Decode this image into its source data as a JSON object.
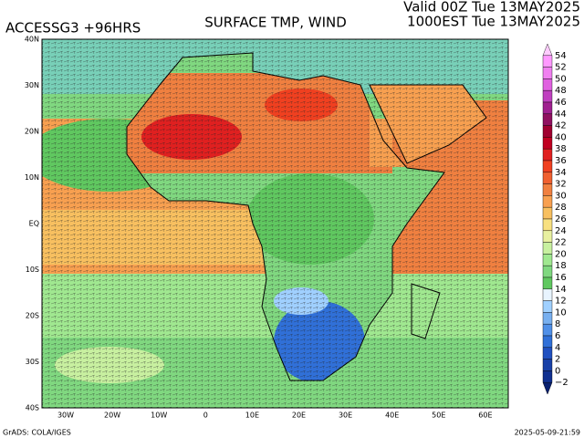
{
  "header": {
    "model": "ACCESSG3 +96HRS",
    "title": "SURFACE TMP, WIND",
    "valid": "Valid 00Z Tue 13MAY2025",
    "local": "1000EST Tue 13MAY2025"
  },
  "map": {
    "lat_labels": [
      "40N",
      "30N",
      "20N",
      "10N",
      "EQ",
      "10S",
      "20S",
      "30S",
      "40S"
    ],
    "lon_labels": [
      "30W",
      "20W",
      "10W",
      "0",
      "10E",
      "20E",
      "30E",
      "40E",
      "50E",
      "60E"
    ]
  },
  "colorbar": {
    "labels": [
      "54",
      "52",
      "50",
      "48",
      "46",
      "44",
      "42",
      "40",
      "38",
      "36",
      "34",
      "32",
      "30",
      "28",
      "26",
      "24",
      "22",
      "20",
      "18",
      "16",
      "14",
      "12",
      "10",
      "8",
      "6",
      "4",
      "2",
      "0",
      "−2"
    ],
    "colors": [
      "#ffccff",
      "#ff99ff",
      "#f080f0",
      "#e060e0",
      "#c040c0",
      "#a02090",
      "#901060",
      "#a00030",
      "#c00020",
      "#e02020",
      "#f04020",
      "#f06030",
      "#f08040",
      "#f8a050",
      "#f8c060",
      "#f8e080",
      "#e8f0a0",
      "#c8f0a0",
      "#a0e890",
      "#80d880",
      "#60c860",
      "#e8f4ff",
      "#a0d0ff",
      "#78b0f0",
      "#5090e8",
      "#3070d8",
      "#2050c0",
      "#1840a8",
      "#103090",
      "#082070"
    ]
  },
  "footer": {
    "left": "GrADS: COLA/IGES",
    "right": "2025-05-09-21:59"
  }
}
